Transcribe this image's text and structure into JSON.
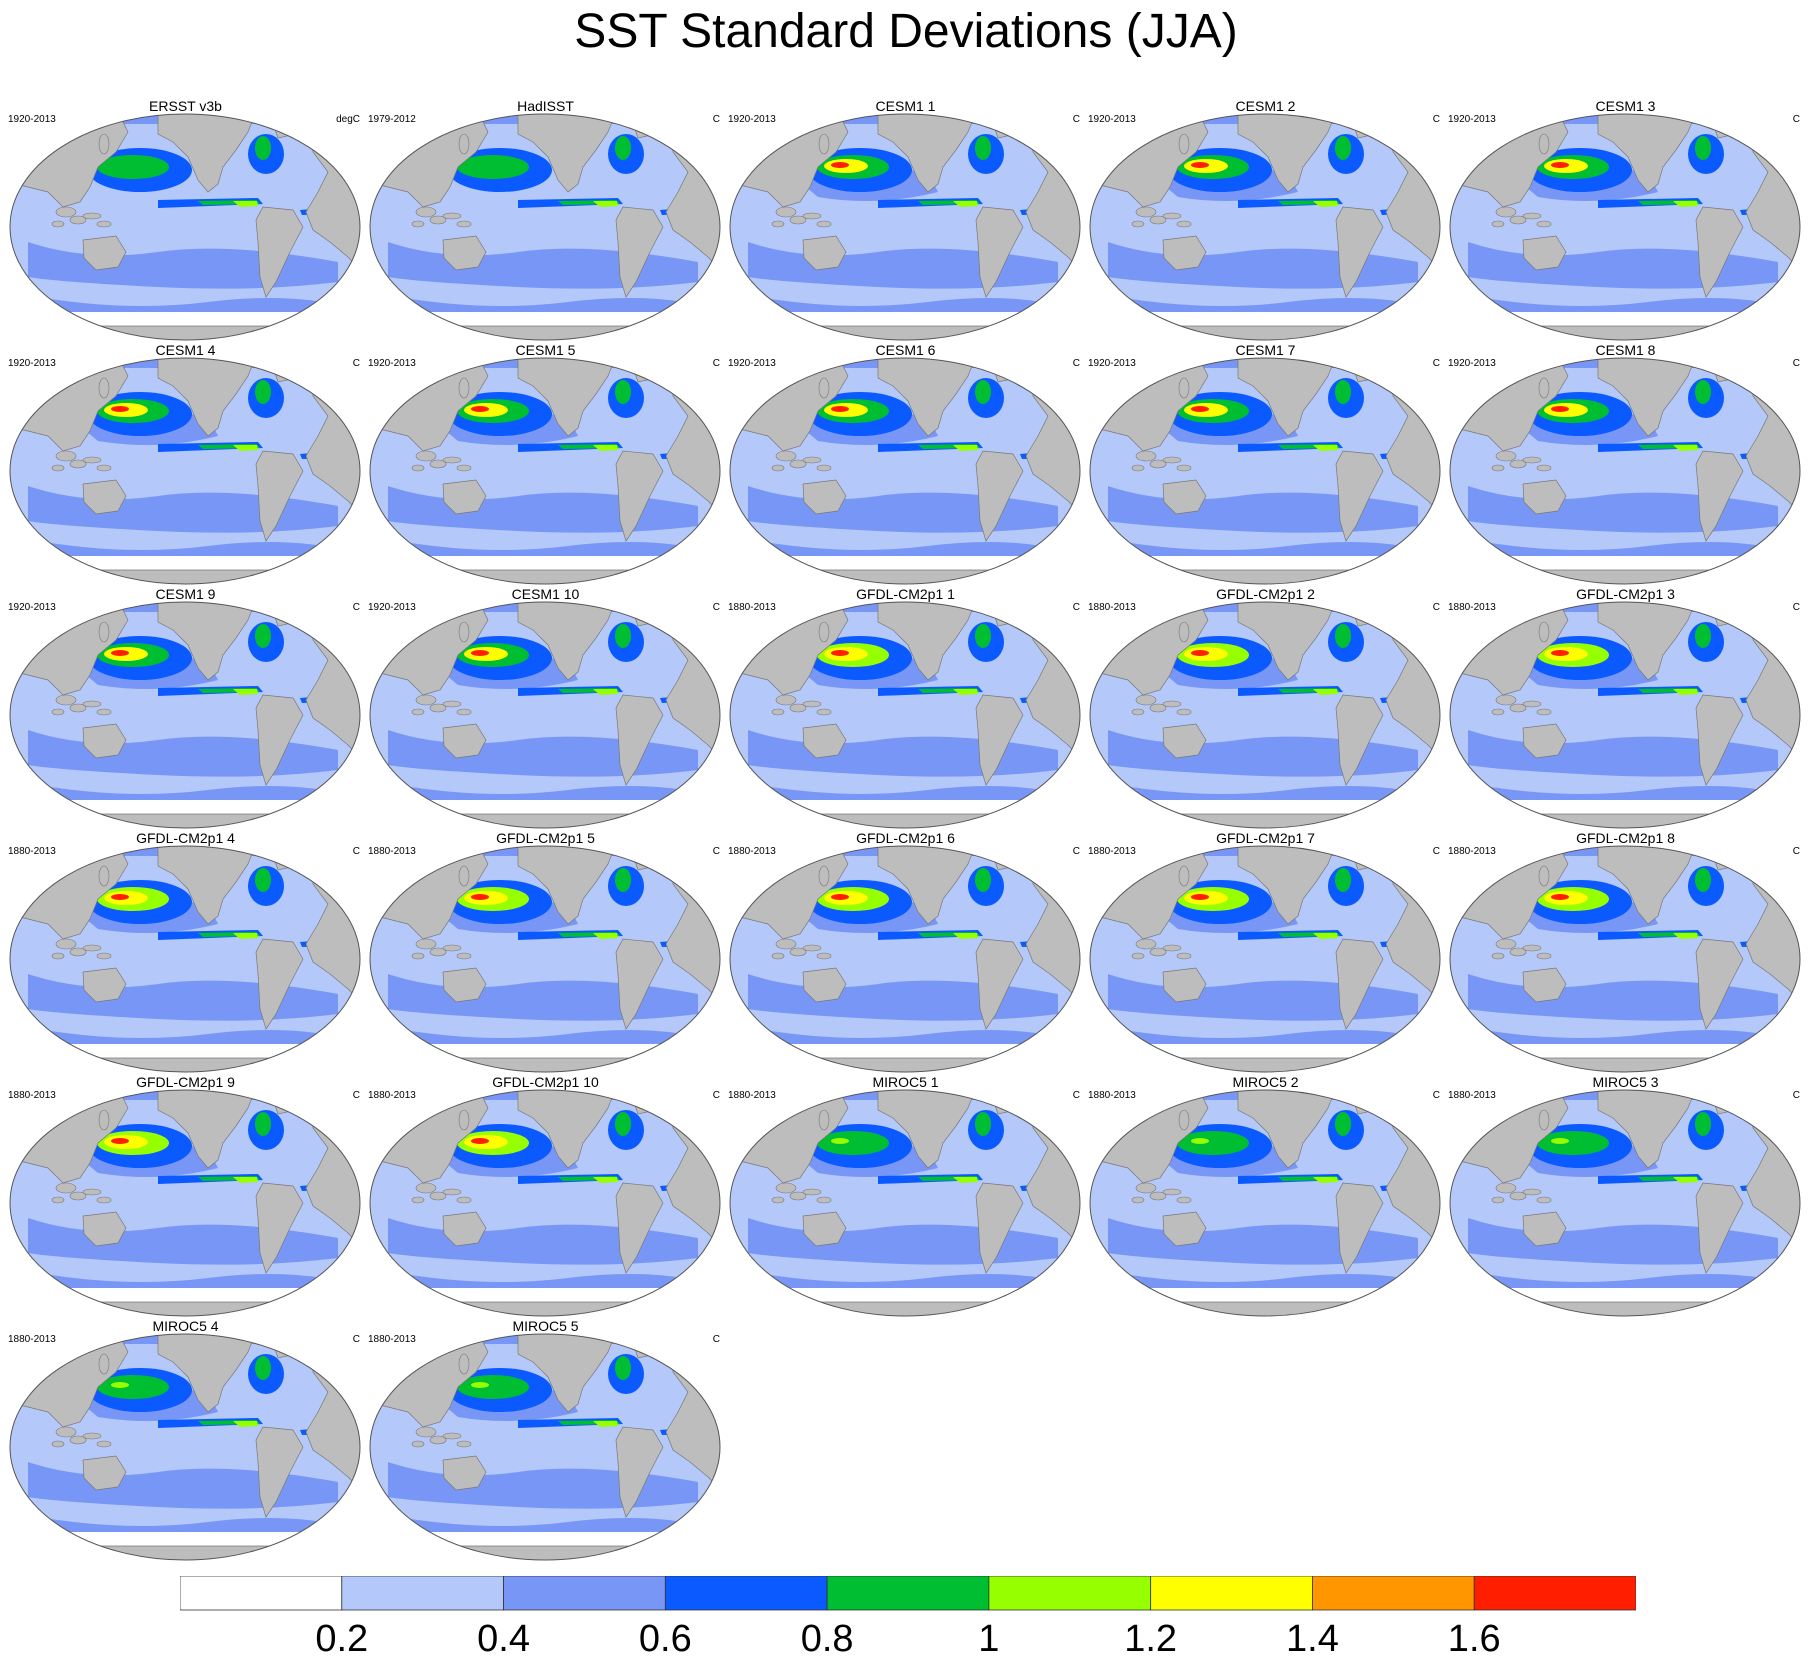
{
  "figure": {
    "title": "SST Standard Deviations (JJA)"
  },
  "panels": [
    {
      "title": "ERSST v3b",
      "period": "1920-2013",
      "units": "degC"
    },
    {
      "title": "HadISST",
      "period": "1979-2012",
      "units": "C"
    },
    {
      "title": "CESM1 1",
      "period": "1920-2013",
      "units": "C"
    },
    {
      "title": "CESM1 2",
      "period": "1920-2013",
      "units": "C"
    },
    {
      "title": "CESM1 3",
      "period": "1920-2013",
      "units": "C"
    },
    {
      "title": "CESM1 4",
      "period": "1920-2013",
      "units": "C"
    },
    {
      "title": "CESM1 5",
      "period": "1920-2013",
      "units": "C"
    },
    {
      "title": "CESM1 6",
      "period": "1920-2013",
      "units": "C"
    },
    {
      "title": "CESM1 7",
      "period": "1920-2013",
      "units": "C"
    },
    {
      "title": "CESM1 8",
      "period": "1920-2013",
      "units": "C"
    },
    {
      "title": "CESM1 9",
      "period": "1920-2013",
      "units": "C"
    },
    {
      "title": "CESM1 10",
      "period": "1920-2013",
      "units": "C"
    },
    {
      "title": "GFDL-CM2p1 1",
      "period": "1880-2013",
      "units": "C"
    },
    {
      "title": "GFDL-CM2p1 2",
      "period": "1880-2013",
      "units": "C"
    },
    {
      "title": "GFDL-CM2p1 3",
      "period": "1880-2013",
      "units": "C"
    },
    {
      "title": "GFDL-CM2p1 4",
      "period": "1880-2013",
      "units": "C"
    },
    {
      "title": "GFDL-CM2p1 5",
      "period": "1880-2013",
      "units": "C"
    },
    {
      "title": "GFDL-CM2p1 6",
      "period": "1880-2013",
      "units": "C"
    },
    {
      "title": "GFDL-CM2p1 7",
      "period": "1880-2013",
      "units": "C"
    },
    {
      "title": "GFDL-CM2p1 8",
      "period": "1880-2013",
      "units": "C"
    },
    {
      "title": "GFDL-CM2p1 9",
      "period": "1880-2013",
      "units": "C"
    },
    {
      "title": "GFDL-CM2p1 10",
      "period": "1880-2013",
      "units": "C"
    },
    {
      "title": "MIROC5 1",
      "period": "1880-2013",
      "units": "C"
    },
    {
      "title": "MIROC5 2",
      "period": "1880-2013",
      "units": "C"
    },
    {
      "title": "MIROC5 3",
      "period": "1880-2013",
      "units": "C"
    },
    {
      "title": "MIROC5 4",
      "period": "1880-2013",
      "units": "C"
    },
    {
      "title": "MIROC5 5",
      "period": "1880-2013",
      "units": "C"
    }
  ],
  "colorbar": {
    "labels": [
      "0.2",
      "0.4",
      "0.6",
      "0.8",
      "1",
      "1.2",
      "1.4",
      "1.6"
    ],
    "colors": [
      "#ffffff",
      "#b4c8fa",
      "#7896f5",
      "#0a5aff",
      "#00be32",
      "#96ff00",
      "#ffff00",
      "#ff9600",
      "#ff1e00"
    ]
  },
  "colors": {
    "land": "#bdbdbd",
    "coast": "#777777"
  }
}
